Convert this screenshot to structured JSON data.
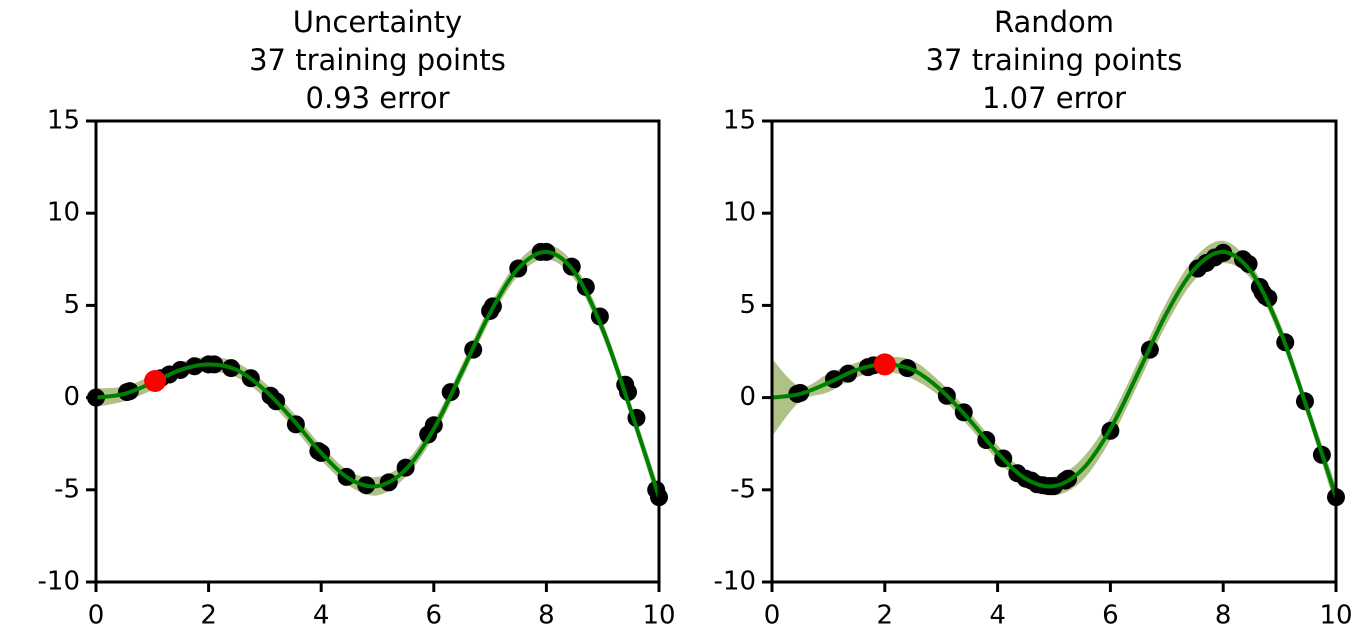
{
  "chart_data": [
    {
      "type": "scatter",
      "title": "Uncertainty",
      "subtitle": "37 training points",
      "annotation": "0.93 error",
      "xlim": [
        0,
        10
      ],
      "ylim": [
        -10,
        15
      ],
      "xticks": [
        0,
        2,
        4,
        6,
        8,
        10
      ],
      "yticks": [
        -10,
        -5,
        0,
        5,
        10,
        15
      ],
      "curve": {
        "color": "#008000",
        "band_color": "#6b8e23",
        "x": [
          0,
          0.5,
          1,
          1.5,
          2,
          2.5,
          3,
          3.5,
          4,
          4.5,
          5,
          5.5,
          6,
          6.5,
          7,
          7.5,
          8,
          8.5,
          9,
          9.5,
          10
        ],
        "values": [
          0,
          0.2,
          0.8,
          1.5,
          1.8,
          1.5,
          0.4,
          -1.2,
          -3.0,
          -4.4,
          -4.8,
          -3.9,
          -1.7,
          1.4,
          4.6,
          7.0,
          7.9,
          6.8,
          3.7,
          -0.7,
          -5.4
        ],
        "upper": [
          0.5,
          0.6,
          1.2,
          1.9,
          2.2,
          1.9,
          0.8,
          -0.8,
          -2.6,
          -4.0,
          -4.3,
          -3.5,
          -1.3,
          1.8,
          5.0,
          7.4,
          8.3,
          7.2,
          4.1,
          -0.3,
          -4.9
        ],
        "lower": [
          -0.5,
          -0.2,
          0.4,
          1.1,
          1.4,
          1.1,
          0.0,
          -1.6,
          -3.4,
          -4.8,
          -5.3,
          -4.3,
          -2.1,
          1.0,
          4.2,
          6.6,
          7.5,
          6.4,
          3.3,
          -1.1,
          -5.9
        ]
      },
      "points": {
        "color": "#000000",
        "x": [
          0,
          0.55,
          0.6,
          1.15,
          1.3,
          1.5,
          1.75,
          2.0,
          2.1,
          2.4,
          2.75,
          3.1,
          3.2,
          3.55,
          3.95,
          4.0,
          4.45,
          4.8,
          5.2,
          5.5,
          5.9,
          6.0,
          6.3,
          6.7,
          7.0,
          7.05,
          7.5,
          7.9,
          8.0,
          8.45,
          8.7,
          8.95,
          9.4,
          9.45,
          9.6,
          9.95,
          10.0
        ],
        "values": [
          0,
          0.3,
          0.35,
          1.05,
          1.25,
          1.5,
          1.7,
          1.8,
          1.8,
          1.6,
          1.05,
          0.1,
          -0.2,
          -1.45,
          -2.9,
          -3.0,
          -4.3,
          -4.75,
          -4.6,
          -3.8,
          -2.0,
          -1.5,
          0.3,
          2.6,
          4.7,
          4.95,
          7.0,
          7.9,
          7.9,
          7.1,
          6.0,
          4.4,
          0.7,
          0.3,
          -1.1,
          -5.0,
          -5.4
        ]
      },
      "highlight": {
        "color": "#ff0000",
        "x": [
          1.05
        ],
        "values": [
          0.9
        ]
      }
    },
    {
      "type": "scatter",
      "title": "Random",
      "subtitle": "37 training points",
      "annotation": "1.07 error",
      "xlim": [
        0,
        10
      ],
      "ylim": [
        -10,
        15
      ],
      "xticks": [
        0,
        2,
        4,
        6,
        8,
        10
      ],
      "yticks": [
        -10,
        -5,
        0,
        5,
        10,
        15
      ],
      "curve": {
        "color": "#008000",
        "band_color": "#6b8e23",
        "x": [
          0,
          0.5,
          1,
          1.5,
          2,
          2.5,
          3,
          3.5,
          4,
          4.5,
          5,
          5.5,
          6,
          6.5,
          7,
          7.5,
          8,
          8.5,
          9,
          9.5,
          10
        ],
        "values": [
          0,
          0.2,
          0.8,
          1.5,
          1.8,
          1.5,
          0.4,
          -1.2,
          -3.0,
          -4.4,
          -4.8,
          -3.9,
          -1.7,
          1.4,
          4.6,
          7.0,
          7.9,
          6.8,
          3.7,
          -0.7,
          -5.4
        ],
        "upper": [
          2.1,
          0.6,
          1.3,
          1.9,
          2.2,
          2.0,
          0.8,
          -0.8,
          -2.6,
          -4.0,
          -4.3,
          -3.3,
          -1.1,
          2.0,
          5.2,
          7.6,
          8.5,
          7.2,
          4.1,
          -0.3,
          -4.8
        ],
        "lower": [
          -2.1,
          -0.2,
          0.3,
          1.1,
          1.4,
          1.0,
          0.0,
          -1.6,
          -3.4,
          -4.8,
          -5.3,
          -4.5,
          -2.3,
          0.8,
          4.0,
          6.4,
          7.3,
          6.4,
          3.3,
          -1.1,
          -6.0
        ]
      },
      "points": {
        "color": "#000000",
        "x": [
          0.45,
          0.5,
          1.1,
          1.35,
          1.7,
          1.8,
          2.4,
          3.1,
          3.4,
          3.8,
          4.1,
          4.35,
          4.5,
          4.6,
          4.7,
          4.8,
          4.9,
          4.95,
          5.0,
          5.2,
          5.25,
          6.0,
          6.7,
          7.55,
          7.7,
          7.85,
          8.0,
          8.35,
          8.45,
          8.65,
          8.7,
          8.75,
          8.8,
          9.1,
          9.45,
          9.75,
          10.0
        ],
        "values": [
          0.2,
          0.25,
          1.0,
          1.3,
          1.65,
          1.75,
          1.6,
          0.1,
          -0.8,
          -2.3,
          -3.3,
          -4.1,
          -4.4,
          -4.5,
          -4.7,
          -4.75,
          -4.8,
          -4.8,
          -4.8,
          -4.5,
          -4.4,
          -1.8,
          2.6,
          7.0,
          7.3,
          7.6,
          7.85,
          7.5,
          7.25,
          6.0,
          5.7,
          5.5,
          5.4,
          3.0,
          -0.2,
          -3.1,
          -5.4
        ]
      },
      "highlight": {
        "color": "#ff0000",
        "x": [
          2.0
        ],
        "values": [
          1.8
        ]
      }
    }
  ]
}
